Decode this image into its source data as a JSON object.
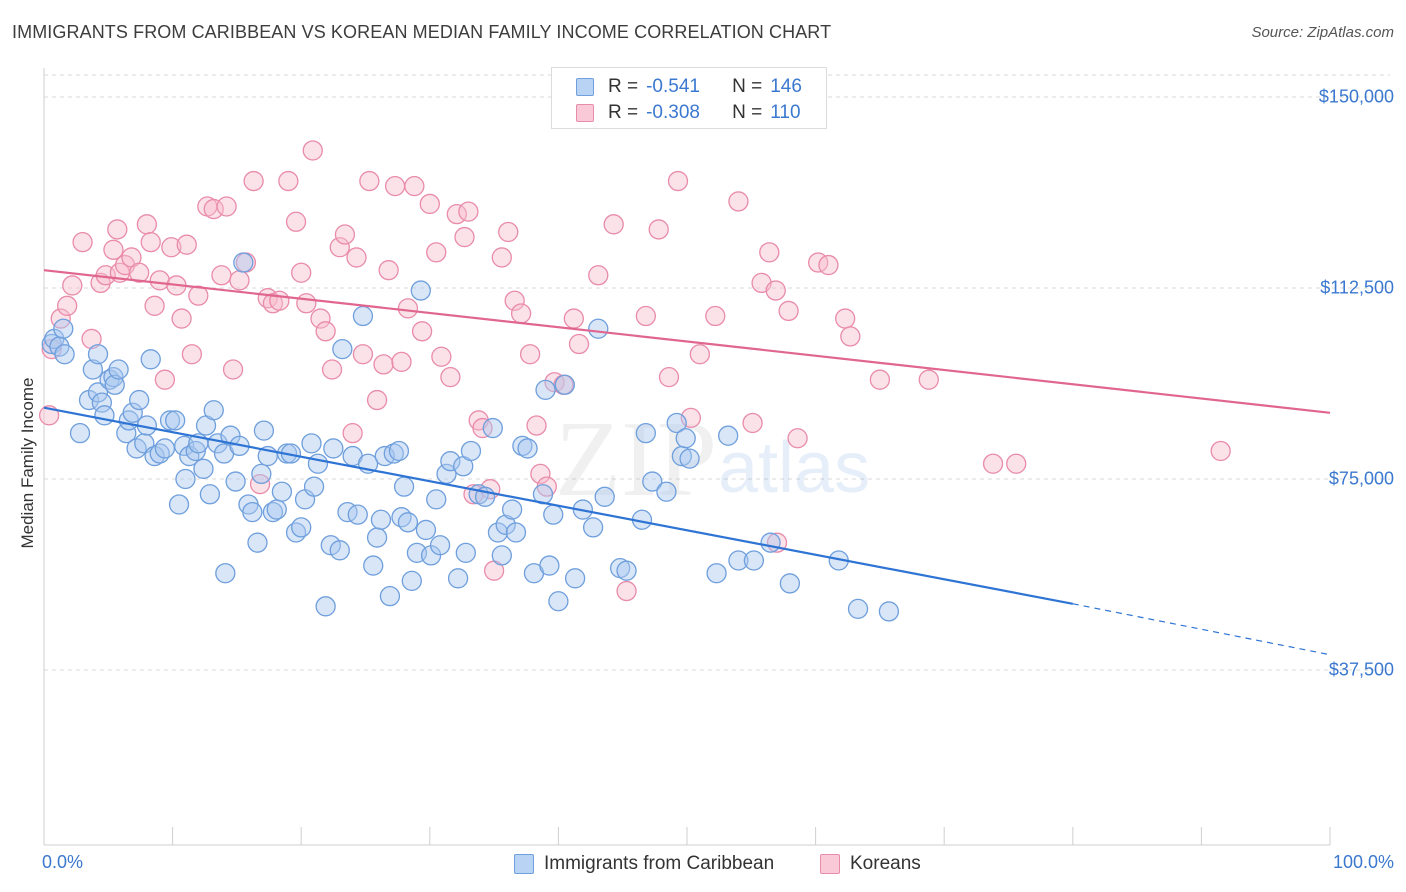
{
  "header": {
    "title": "IMMIGRANTS FROM CARIBBEAN VS KOREAN MEDIAN FAMILY INCOME CORRELATION CHART",
    "source": "Source: ZipAtlas.com"
  },
  "watermark": {
    "zip": "ZIP",
    "atlas": "atlas"
  },
  "legend_top": {
    "rows": [
      {
        "r_label": "R =",
        "r_value": "-0.541",
        "n_label": "N =",
        "n_value": "146"
      },
      {
        "r_label": "R =",
        "r_value": "-0.308",
        "n_label": "N =",
        "n_value": "110"
      }
    ]
  },
  "colors": {
    "blue_fill": "#a8c8f0",
    "blue_stroke": "#6f9fdc",
    "blue_line": "#2e74d4",
    "pink_fill": "#f7bccd",
    "pink_stroke": "#e98bab",
    "pink_line": "#e0668f",
    "grid": "#d9d9d9",
    "axis_text": "#3b78cf"
  },
  "chart_data": {
    "type": "scatter",
    "title": "IMMIGRANTS FROM CARIBBEAN VS KOREAN MEDIAN FAMILY INCOME CORRELATION CHART",
    "xlabel": "",
    "ylabel": "Median Family Income",
    "xlim": [
      0,
      100
    ],
    "ylim": [
      0,
      157500
    ],
    "x_tick_labels": [
      "0.0%",
      "100.0%"
    ],
    "y_ticks": [
      37500,
      75000,
      112500,
      150000
    ],
    "y_tick_labels": [
      "$37,500",
      "$75,000",
      "$112,500",
      "$150,000"
    ],
    "grid": true,
    "legend_position": "top-center",
    "series": [
      {
        "name": "Immigrants from Caribbean",
        "color": "#6f9fdc",
        "r": -0.541,
        "n": 146,
        "trend": {
          "x0": 0,
          "y0": 89000,
          "x1": 80,
          "y1": 50500,
          "dashed_to_x": 100,
          "dashed_to_y": 40500
        },
        "points": [
          [
            0.6,
            101500
          ],
          [
            0.8,
            102500
          ],
          [
            1.2,
            101000
          ],
          [
            1.5,
            104500
          ],
          [
            1.6,
            99500
          ],
          [
            2.8,
            84000
          ],
          [
            3.5,
            90500
          ],
          [
            3.8,
            96500
          ],
          [
            4.2,
            92000
          ],
          [
            4.2,
            99500
          ],
          [
            4.5,
            90000
          ],
          [
            4.7,
            87500
          ],
          [
            5.1,
            94500
          ],
          [
            5.4,
            95000
          ],
          [
            5.5,
            93500
          ],
          [
            5.8,
            96500
          ],
          [
            6.4,
            84000
          ],
          [
            6.6,
            86500
          ],
          [
            6.9,
            88000
          ],
          [
            7.2,
            81000
          ],
          [
            7.4,
            90500
          ],
          [
            7.8,
            82000
          ],
          [
            8.0,
            85500
          ],
          [
            8.3,
            98500
          ],
          [
            8.6,
            79500
          ],
          [
            9.0,
            80000
          ],
          [
            9.4,
            81000
          ],
          [
            9.8,
            86500
          ],
          [
            10.2,
            86500
          ],
          [
            10.5,
            70000
          ],
          [
            10.9,
            81500
          ],
          [
            11.0,
            75000
          ],
          [
            11.3,
            79500
          ],
          [
            11.8,
            80500
          ],
          [
            12.0,
            82000
          ],
          [
            12.4,
            77000
          ],
          [
            12.6,
            85500
          ],
          [
            12.9,
            72000
          ],
          [
            13.2,
            88500
          ],
          [
            13.5,
            82000
          ],
          [
            14.0,
            80000
          ],
          [
            14.1,
            56500
          ],
          [
            14.5,
            83500
          ],
          [
            14.9,
            74500
          ],
          [
            15.2,
            81500
          ],
          [
            15.5,
            117500
          ],
          [
            15.9,
            70000
          ],
          [
            16.2,
            68500
          ],
          [
            16.6,
            62500
          ],
          [
            16.9,
            76000
          ],
          [
            17.1,
            84500
          ],
          [
            17.4,
            79500
          ],
          [
            17.8,
            68500
          ],
          [
            18.1,
            69000
          ],
          [
            18.5,
            72500
          ],
          [
            18.9,
            80000
          ],
          [
            19.2,
            80000
          ],
          [
            19.6,
            64500
          ],
          [
            20.0,
            65500
          ],
          [
            20.3,
            71000
          ],
          [
            20.8,
            82000
          ],
          [
            21.0,
            73500
          ],
          [
            21.3,
            78000
          ],
          [
            21.9,
            50000
          ],
          [
            22.3,
            62000
          ],
          [
            22.5,
            81000
          ],
          [
            23.0,
            61000
          ],
          [
            23.2,
            100500
          ],
          [
            23.6,
            68500
          ],
          [
            24.0,
            79500
          ],
          [
            24.4,
            68000
          ],
          [
            24.8,
            107000
          ],
          [
            25.2,
            78000
          ],
          [
            25.6,
            58000
          ],
          [
            25.9,
            63500
          ],
          [
            26.2,
            67000
          ],
          [
            26.5,
            79500
          ],
          [
            26.9,
            52000
          ],
          [
            27.2,
            80000
          ],
          [
            27.6,
            80500
          ],
          [
            27.8,
            67500
          ],
          [
            28.0,
            73500
          ],
          [
            28.3,
            66500
          ],
          [
            28.6,
            55000
          ],
          [
            29.0,
            60500
          ],
          [
            29.3,
            112000
          ],
          [
            29.7,
            65000
          ],
          [
            30.1,
            60000
          ],
          [
            30.5,
            71000
          ],
          [
            30.8,
            62000
          ],
          [
            31.3,
            76000
          ],
          [
            31.6,
            78500
          ],
          [
            32.2,
            55500
          ],
          [
            32.6,
            77500
          ],
          [
            32.8,
            60500
          ],
          [
            33.2,
            80500
          ],
          [
            33.8,
            72000
          ],
          [
            34.3,
            71500
          ],
          [
            34.9,
            85000
          ],
          [
            35.3,
            64500
          ],
          [
            35.6,
            60000
          ],
          [
            35.9,
            66000
          ],
          [
            36.4,
            69000
          ],
          [
            36.7,
            64500
          ],
          [
            37.2,
            81500
          ],
          [
            37.6,
            81000
          ],
          [
            38.1,
            56500
          ],
          [
            38.8,
            72000
          ],
          [
            39.0,
            92500
          ],
          [
            39.3,
            58000
          ],
          [
            39.6,
            68000
          ],
          [
            40.0,
            51000
          ],
          [
            40.5,
            93500
          ],
          [
            41.3,
            55500
          ],
          [
            41.9,
            69000
          ],
          [
            42.7,
            65500
          ],
          [
            43.1,
            104500
          ],
          [
            43.6,
            71500
          ],
          [
            44.8,
            57500
          ],
          [
            45.3,
            57000
          ],
          [
            46.5,
            67000
          ],
          [
            46.8,
            84000
          ],
          [
            47.3,
            74500
          ],
          [
            48.4,
            72500
          ],
          [
            49.2,
            86000
          ],
          [
            49.6,
            79500
          ],
          [
            49.9,
            83000
          ],
          [
            50.2,
            79000
          ],
          [
            52.3,
            56500
          ],
          [
            53.2,
            83500
          ],
          [
            54.0,
            59000
          ],
          [
            55.2,
            59000
          ],
          [
            56.5,
            62500
          ],
          [
            58.0,
            54500
          ],
          [
            61.8,
            59000
          ],
          [
            63.3,
            49500
          ],
          [
            65.7,
            49000
          ]
        ]
      },
      {
        "name": "Koreans",
        "color": "#e98bab",
        "r": -0.308,
        "n": 110,
        "trend": {
          "x0": 0,
          "y0": 116000,
          "x1": 100,
          "y1": 88000
        },
        "points": [
          [
            0.4,
            87500
          ],
          [
            0.6,
            100500
          ],
          [
            1.3,
            106500
          ],
          [
            1.8,
            109000
          ],
          [
            2.2,
            113000
          ],
          [
            3.0,
            121500
          ],
          [
            3.7,
            102500
          ],
          [
            4.4,
            113500
          ],
          [
            4.8,
            115000
          ],
          [
            5.4,
            120000
          ],
          [
            5.7,
            124000
          ],
          [
            5.9,
            115500
          ],
          [
            6.3,
            117000
          ],
          [
            6.8,
            118500
          ],
          [
            7.4,
            115500
          ],
          [
            8.0,
            125000
          ],
          [
            8.3,
            121500
          ],
          [
            8.6,
            109000
          ],
          [
            9.0,
            114000
          ],
          [
            9.4,
            94500
          ],
          [
            9.9,
            120500
          ],
          [
            10.3,
            113000
          ],
          [
            10.7,
            106500
          ],
          [
            11.1,
            121000
          ],
          [
            11.5,
            99500
          ],
          [
            12.0,
            111000
          ],
          [
            12.7,
            128500
          ],
          [
            13.2,
            128000
          ],
          [
            13.8,
            115000
          ],
          [
            14.2,
            128500
          ],
          [
            14.7,
            96500
          ],
          [
            15.2,
            114000
          ],
          [
            15.7,
            117500
          ],
          [
            16.3,
            133500
          ],
          [
            16.8,
            74000
          ],
          [
            17.4,
            110500
          ],
          [
            17.8,
            109500
          ],
          [
            18.3,
            110000
          ],
          [
            19.0,
            133500
          ],
          [
            19.6,
            125500
          ],
          [
            20.0,
            115500
          ],
          [
            20.4,
            109500
          ],
          [
            20.9,
            139500
          ],
          [
            21.5,
            106500
          ],
          [
            21.9,
            104000
          ],
          [
            22.4,
            96500
          ],
          [
            23.0,
            120500
          ],
          [
            23.4,
            123000
          ],
          [
            24.0,
            84000
          ],
          [
            24.3,
            118500
          ],
          [
            24.8,
            99500
          ],
          [
            25.3,
            133500
          ],
          [
            25.9,
            90500
          ],
          [
            26.4,
            97500
          ],
          [
            26.8,
            116000
          ],
          [
            27.3,
            132500
          ],
          [
            27.8,
            98000
          ],
          [
            28.3,
            108500
          ],
          [
            28.8,
            132500
          ],
          [
            29.4,
            104000
          ],
          [
            30.0,
            129000
          ],
          [
            30.5,
            119500
          ],
          [
            30.9,
            99000
          ],
          [
            31.6,
            95000
          ],
          [
            32.1,
            127000
          ],
          [
            32.7,
            122500
          ],
          [
            33.0,
            127500
          ],
          [
            33.4,
            72000
          ],
          [
            33.8,
            86500
          ],
          [
            34.1,
            85000
          ],
          [
            34.7,
            73000
          ],
          [
            35.0,
            57000
          ],
          [
            35.6,
            118500
          ],
          [
            36.1,
            123500
          ],
          [
            36.6,
            110000
          ],
          [
            37.1,
            107500
          ],
          [
            37.8,
            99500
          ],
          [
            38.3,
            85500
          ],
          [
            38.6,
            76000
          ],
          [
            39.1,
            73500
          ],
          [
            39.7,
            94000
          ],
          [
            40.4,
            93500
          ],
          [
            41.2,
            106500
          ],
          [
            41.6,
            101500
          ],
          [
            43.1,
            115000
          ],
          [
            44.3,
            125000
          ],
          [
            45.3,
            53000
          ],
          [
            46.8,
            107000
          ],
          [
            47.8,
            124000
          ],
          [
            48.6,
            95000
          ],
          [
            49.3,
            133500
          ],
          [
            50.3,
            87000
          ],
          [
            51.0,
            99500
          ],
          [
            52.2,
            107000
          ],
          [
            52.8,
            148000
          ],
          [
            54.0,
            129500
          ],
          [
            55.1,
            86000
          ],
          [
            55.8,
            113500
          ],
          [
            56.4,
            119500
          ],
          [
            56.9,
            112000
          ],
          [
            57.9,
            108000
          ],
          [
            58.6,
            83000
          ],
          [
            60.2,
            117500
          ],
          [
            61.0,
            117000
          ],
          [
            62.3,
            106500
          ],
          [
            62.7,
            103000
          ],
          [
            65.0,
            94500
          ],
          [
            68.8,
            94500
          ],
          [
            73.8,
            78000
          ],
          [
            75.6,
            78000
          ],
          [
            91.5,
            80500
          ],
          [
            57.0,
            62500
          ]
        ]
      }
    ]
  },
  "axes": {
    "x_min_label": "0.0%",
    "x_max_label": "100.0%",
    "y_labels": [
      "$150,000",
      "$112,500",
      "$75,000",
      "$37,500"
    ]
  },
  "bottom_legend": {
    "items": [
      {
        "label": "Immigrants from Caribbean"
      },
      {
        "label": "Koreans"
      }
    ]
  }
}
